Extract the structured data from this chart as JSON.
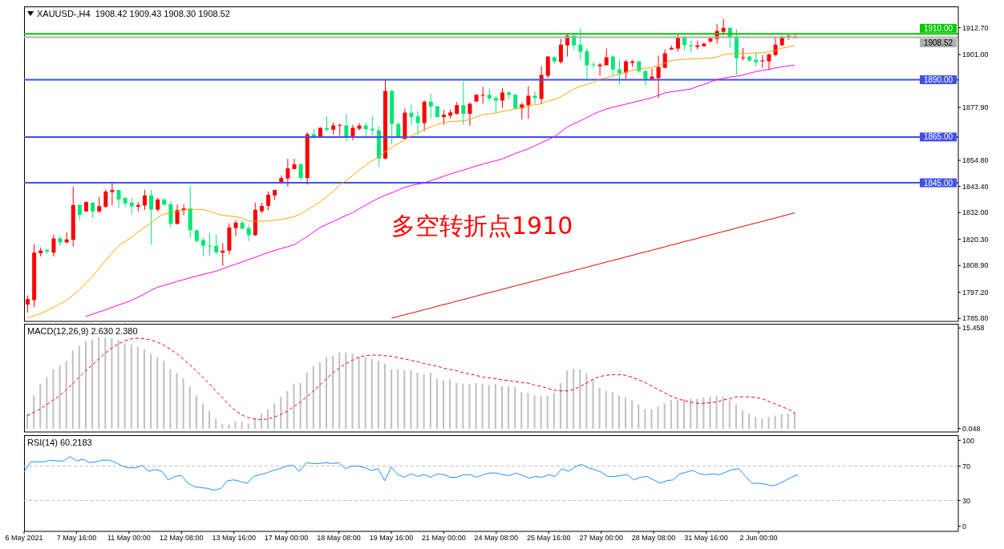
{
  "chart_data": [
    {
      "type": "candlestick",
      "title": "XAUUSD-,H4  1908.42 1909.43 1908.30 1908.52",
      "tick_labels": "y",
      "categories": [
        null,
        null,
        null,
        null,
        null,
        null,
        null,
        null,
        null,
        null,
        null,
        null,
        null,
        null,
        null,
        null,
        null,
        null,
        null,
        null,
        null,
        null,
        null,
        null,
        null,
        null,
        null,
        null,
        null,
        null,
        null,
        null,
        null,
        null,
        null,
        null,
        null,
        null,
        null,
        null,
        null,
        null,
        null,
        null,
        null,
        null,
        null,
        null,
        null,
        null,
        null,
        null,
        null,
        null,
        null,
        null,
        null,
        null,
        null,
        null,
        null,
        null,
        null,
        null,
        null,
        null,
        null,
        null,
        null,
        null,
        null,
        null,
        null,
        null,
        null,
        null,
        null,
        null,
        null,
        null,
        null,
        null,
        null,
        null,
        null,
        null,
        null,
        null,
        null,
        null,
        null,
        null,
        null,
        null,
        null,
        null,
        null,
        null,
        null,
        null,
        null,
        null,
        null,
        null,
        null,
        null,
        null,
        null,
        null,
        null,
        null,
        null,
        null,
        null,
        null,
        null,
        null,
        null,
        null
      ],
      "ohlc": [
        [
          1791.9,
          1795.9,
          1788.4,
          1794.2
        ],
        [
          1793.8,
          1818.2,
          1790.7,
          1814.5
        ],
        [
          1814.3,
          1816.8,
          1812.8,
          1815.4
        ],
        [
          1815.7,
          1816.2,
          1813.9,
          1815.0
        ],
        [
          1814.5,
          1822.4,
          1812.8,
          1820.7
        ],
        [
          1820.7,
          1821.8,
          1817.4,
          1819.0
        ],
        [
          1819.0,
          1823.4,
          1818.6,
          1820.3
        ],
        [
          1820.1,
          1843.3,
          1817.2,
          1835.3
        ],
        [
          1835.3,
          1835.6,
          1828.7,
          1831.0
        ],
        [
          1832.5,
          1837.0,
          1832.3,
          1836.6
        ],
        [
          1836.3,
          1836.6,
          1829.8,
          1832.5
        ],
        [
          1832.5,
          1838.9,
          1831.9,
          1834.8
        ],
        [
          1834.5,
          1842.0,
          1834.0,
          1841.2
        ],
        [
          1841.0,
          1845.2,
          1835.2,
          1841.9
        ],
        [
          1841.9,
          1841.9,
          1834.0,
          1837.7
        ],
        [
          1838.4,
          1838.9,
          1834.5,
          1836.0
        ],
        [
          1836.3,
          1838.4,
          1831.2,
          1834.7
        ],
        [
          1834.6,
          1836.6,
          1832.5,
          1835.3
        ],
        [
          1835.1,
          1841.9,
          1833.1,
          1839.5
        ],
        [
          1839.5,
          1841.9,
          1818.0,
          1833.3
        ],
        [
          1833.3,
          1838.4,
          1832.5,
          1837.7
        ],
        [
          1837.7,
          1838.4,
          1835.1,
          1835.4
        ],
        [
          1835.6,
          1837.0,
          1825.9,
          1827.1
        ],
        [
          1827.1,
          1835.6,
          1826.7,
          1833.1
        ],
        [
          1833.1,
          1835.6,
          1830.8,
          1833.8
        ],
        [
          1833.8,
          1843.5,
          1820.9,
          1824.3
        ],
        [
          1824.3,
          1824.5,
          1818.9,
          1819.6
        ],
        [
          1820.0,
          1821.0,
          1813.0,
          1817.5
        ],
        [
          1817.5,
          1823.1,
          1813.0,
          1817.2
        ],
        [
          1817.5,
          1822.4,
          1813.8,
          1814.7
        ],
        [
          1814.5,
          1818.7,
          1808.9,
          1815.4
        ],
        [
          1815.4,
          1827.3,
          1813.7,
          1825.5
        ],
        [
          1825.2,
          1828.7,
          1821.7,
          1827.6
        ],
        [
          1827.6,
          1828.7,
          1824.7,
          1825.0
        ],
        [
          1825.2,
          1826.6,
          1819.6,
          1822.1
        ],
        [
          1822.1,
          1836.3,
          1821.8,
          1833.2
        ],
        [
          1832.6,
          1836.3,
          1831.6,
          1834.9
        ],
        [
          1834.9,
          1841.2,
          1833.0,
          1839.8
        ],
        [
          1839.5,
          1841.9,
          1837.5,
          1841.9
        ],
        [
          1845.4,
          1848.2,
          1844.6,
          1847.1
        ],
        [
          1846.9,
          1855.5,
          1843.3,
          1851.3
        ],
        [
          1851.0,
          1855.5,
          1851.0,
          1853.1
        ],
        [
          1853.1,
          1853.8,
          1846.1,
          1847.1
        ],
        [
          1847.1,
          1867.1,
          1844.2,
          1866.2
        ],
        [
          1866.2,
          1868.5,
          1864.4,
          1864.7
        ],
        [
          1865.0,
          1869.2,
          1864.7,
          1869.0
        ],
        [
          1868.9,
          1874.0,
          1867.2,
          1868.2
        ],
        [
          1868.2,
          1871.4,
          1866.1,
          1870.0
        ],
        [
          1870.0,
          1870.7,
          1865.6,
          1870.3
        ],
        [
          1870.0,
          1874.9,
          1863.1,
          1864.7
        ],
        [
          1865.4,
          1870.3,
          1863.6,
          1869.0
        ],
        [
          1868.6,
          1871.1,
          1867.9,
          1870.0
        ],
        [
          1870.0,
          1871.4,
          1864.4,
          1868.4
        ],
        [
          1868.6,
          1874.0,
          1865.6,
          1867.9
        ],
        [
          1867.9,
          1869.7,
          1852.1,
          1855.6
        ],
        [
          1855.6,
          1889.8,
          1855.2,
          1885.1
        ],
        [
          1885.1,
          1885.5,
          1861.9,
          1870.7
        ],
        [
          1870.7,
          1871.4,
          1864.7,
          1865.1
        ],
        [
          1864.1,
          1877.5,
          1863.8,
          1875.6
        ],
        [
          1875.6,
          1879.1,
          1870.3,
          1873.7
        ],
        [
          1874.0,
          1876.3,
          1865.8,
          1871.1
        ],
        [
          1871.1,
          1881.1,
          1867.6,
          1880.4
        ],
        [
          1880.4,
          1883.8,
          1873.0,
          1878.3
        ],
        [
          1878.4,
          1878.4,
          1873.7,
          1873.7
        ],
        [
          1873.7,
          1876.8,
          1870.3,
          1874.7
        ],
        [
          1874.3,
          1877.1,
          1872.9,
          1875.7
        ],
        [
          1875.1,
          1880.2,
          1874.8,
          1878.9
        ],
        [
          1878.9,
          1889.3,
          1870.3,
          1875.1
        ],
        [
          1875.1,
          1880.2,
          1869.9,
          1879.5
        ],
        [
          1880.5,
          1883.7,
          1880.2,
          1883.4
        ],
        [
          1883.1,
          1886.9,
          1879.5,
          1883.4
        ],
        [
          1883.4,
          1886.2,
          1880.6,
          1881.8
        ],
        [
          1882.0,
          1883.0,
          1875.5,
          1880.9
        ],
        [
          1880.9,
          1886.2,
          1877.6,
          1884.4
        ],
        [
          1884.4,
          1884.8,
          1881.6,
          1883.4
        ],
        [
          1883.4,
          1883.7,
          1877.1,
          1877.5
        ],
        [
          1877.5,
          1879.9,
          1872.7,
          1879.2
        ],
        [
          1878.9,
          1887.2,
          1873.0,
          1883.0
        ],
        [
          1883.0,
          1884.8,
          1879.5,
          1882.0
        ],
        [
          1881.6,
          1895.9,
          1879.5,
          1892.1
        ],
        [
          1891.7,
          1900.3,
          1890.7,
          1900.1
        ],
        [
          1899.8,
          1900.1,
          1897.0,
          1898.0
        ],
        [
          1897.7,
          1907.8,
          1897.0,
          1905.3
        ],
        [
          1905.0,
          1909.9,
          1900.1,
          1909.2
        ],
        [
          1909.2,
          1909.9,
          1903.2,
          1905.0
        ],
        [
          1905.3,
          1912.6,
          1898.7,
          1902.2
        ],
        [
          1902.5,
          1903.9,
          1890.3,
          1896.3
        ],
        [
          1896.6,
          1897.7,
          1894.9,
          1896.3
        ],
        [
          1895.9,
          1897.3,
          1891.7,
          1896.6
        ],
        [
          1896.3,
          1903.6,
          1896.3,
          1899.8
        ],
        [
          1900.1,
          1900.5,
          1891.7,
          1894.5
        ],
        [
          1894.5,
          1898.7,
          1887.9,
          1892.8
        ],
        [
          1893.1,
          1898.7,
          1890.3,
          1898.0
        ],
        [
          1897.3,
          1898.7,
          1895.6,
          1898.0
        ],
        [
          1898.0,
          1898.2,
          1893.1,
          1893.8
        ],
        [
          1893.8,
          1894.2,
          1887.6,
          1890.3
        ],
        [
          1890.3,
          1894.9,
          1890.2,
          1891.4
        ],
        [
          1890.7,
          1900.5,
          1882.0,
          1895.6
        ],
        [
          1895.2,
          1903.2,
          1895.1,
          1901.5
        ],
        [
          1903.2,
          1905.0,
          1902.9,
          1903.9
        ],
        [
          1903.6,
          1909.9,
          1902.2,
          1908.5
        ],
        [
          1908.5,
          1908.6,
          1902.9,
          1905.0
        ],
        [
          1905.0,
          1907.1,
          1901.8,
          1904.6
        ],
        [
          1904.3,
          1907.1,
          1903.2,
          1905.0
        ],
        [
          1904.6,
          1906.4,
          1904.6,
          1905.7
        ],
        [
          1906.7,
          1908.5,
          1906.0,
          1908.1
        ],
        [
          1907.8,
          1914.4,
          1905.7,
          1911.3
        ],
        [
          1910.9,
          1916.5,
          1909.5,
          1912.6
        ],
        [
          1912.6,
          1913.0,
          1903.9,
          1908.5
        ],
        [
          1908.8,
          1912.0,
          1892.1,
          1899.4
        ],
        [
          1899.4,
          1903.9,
          1898.4,
          1899.8
        ],
        [
          1900.1,
          1900.5,
          1898.0,
          1898.4
        ],
        [
          1898.7,
          1902.2,
          1895.9,
          1897.7
        ],
        [
          1898.0,
          1900.8,
          1895.2,
          1898.4
        ],
        [
          1898.0,
          1901.5,
          1894.2,
          1901.1
        ],
        [
          1900.8,
          1908.8,
          1900.1,
          1905.3
        ],
        [
          1905.0,
          1909.2,
          1905.0,
          1908.8
        ],
        [
          1908.8,
          1909.3,
          1907.4,
          1909.2
        ],
        [
          1908.42,
          1909.43,
          1908.3,
          1908.52
        ]
      ],
      "colors": [
        "#ff0000",
        "#ff0000",
        "#ff0000",
        "#00e676",
        "#ff0000",
        "#00e676",
        "#ff0000",
        "#ff0000",
        "#00e676",
        "#ff0000",
        "#00e676",
        "#ff0000",
        "#ff0000",
        "#ff0000",
        "#00e676",
        "#00e676",
        "#00e676",
        "#ff0000",
        "#ff0000",
        "#00e676",
        "#ff0000",
        "#00e676",
        "#00e676",
        "#ff0000",
        "#ff0000",
        "#00e676",
        "#00e676",
        "#00e676",
        "#00e676",
        "#00e676",
        "#ff0000",
        "#ff0000",
        "#ff0000",
        "#00e676",
        "#00e676",
        "#ff0000",
        "#ff0000",
        "#ff0000",
        "#ff0000",
        "#ff0000",
        "#ff0000",
        "#ff0000",
        "#00e676",
        "#ff0000",
        "#00e676",
        "#ff0000",
        "#00e676",
        "#ff0000",
        "#ff0000",
        "#00e676",
        "#ff0000",
        "#ff0000",
        "#00e676",
        "#00e676",
        "#00e676",
        "#ff0000",
        "#00e676",
        "#00e676",
        "#ff0000",
        "#00e676",
        "#00e676",
        "#ff0000",
        "#00e676",
        "#00e676",
        "#ff0000",
        "#ff0000",
        "#ff0000",
        "#00e676",
        "#ff0000",
        "#ff0000",
        "#ff0000",
        "#00e676",
        "#00e676",
        "#ff0000",
        "#00e676",
        "#00e676",
        "#ff0000",
        "#ff0000",
        "#00e676",
        "#ff0000",
        "#ff0000",
        "#00e676",
        "#ff0000",
        "#ff0000",
        "#00e676",
        "#00e676",
        "#00e676",
        "#00e676",
        "#ff0000",
        "#ff0000",
        "#00e676",
        "#00e676",
        "#ff0000",
        "#ff0000",
        "#00e676",
        "#00e676",
        "#ff0000",
        "#ff0000",
        "#ff0000",
        "#ff0000",
        "#ff0000",
        "#00e676",
        "#00e676",
        "#ff0000",
        "#ff0000",
        "#ff0000",
        "#ff0000",
        "#ff0000",
        "#00e676",
        "#00e676",
        "#ff0000",
        "#00e676",
        "#00e676",
        "#ff0000",
        "#ff0000",
        "#ff0000",
        "#ff0000",
        "#ff0000",
        "#ff0000"
      ],
      "series": [
        {
          "type": "line",
          "color": "#ffa500",
          "values": [
            1786.1,
            1786.9,
            1787.8,
            1789.2,
            1790.7,
            1792.1,
            1793.6,
            1795.9,
            1798.3,
            1801.2,
            1804.1,
            1807.5,
            1811.0,
            1814.3,
            1817.4,
            1819.4,
            1821.1,
            1823.5,
            1825.5,
            1827.3,
            1829.8,
            1831.3,
            1831.9,
            1832.5,
            1833.1,
            1833.4,
            1833.4,
            1833.4,
            1832.5,
            1831.6,
            1830.8,
            1830.5,
            1830.2,
            1829.6,
            1828.4,
            1828.2,
            1828.2,
            1828.4,
            1828.7,
            1829.0,
            1829.6,
            1830.2,
            1831.3,
            1833.1,
            1834.8,
            1836.6,
            1838.9,
            1841.2,
            1844.1,
            1845.9,
            1848.2,
            1850.5,
            1852.6,
            1854.6,
            1856.1,
            1858.6,
            1860.4,
            1862.1,
            1863.9,
            1865.4,
            1866.8,
            1868.2,
            1869.3,
            1870.5,
            1871.2,
            1871.7,
            1871.9,
            1872.0,
            1872.6,
            1873.7,
            1874.7,
            1875.1,
            1875.5,
            1876.1,
            1876.6,
            1877.2,
            1877.8,
            1878.4,
            1879.0,
            1879.5,
            1880.7,
            1881.3,
            1882.5,
            1884.2,
            1885.9,
            1887.1,
            1887.9,
            1888.8,
            1890.3,
            1890.8,
            1891.6,
            1892.3,
            1893.3,
            1894.1,
            1894.6,
            1895.0,
            1895.3,
            1896.4,
            1897.2,
            1898.4,
            1898.7,
            1898.9,
            1899.1,
            1899.2,
            1899.3,
            1899.4,
            1899.9,
            1900.8,
            1901.3,
            1901.4,
            1901.5,
            1901.6,
            1901.7,
            1901.8,
            1902.2,
            1902.8,
            1903.7,
            1904.3,
            1905.0
          ]
        },
        {
          "type": "line",
          "color": "#ff00ff",
          "values": [
            null,
            null,
            null,
            null,
            null,
            null,
            null,
            null,
            null,
            1786.6,
            1787.6,
            1788.6,
            1789.5,
            1790.6,
            1791.6,
            1792.6,
            1793.6,
            1795.0,
            1796.5,
            1798.0,
            1799.4,
            1800.2,
            1801.0,
            1801.9,
            1802.7,
            1803.5,
            1804.3,
            1805.0,
            1805.7,
            1806.4,
            1807.4,
            1808.5,
            1809.4,
            1810.4,
            1811.5,
            1812.4,
            1813.5,
            1814.5,
            1815.4,
            1816.3,
            1817.1,
            1817.9,
            1819.7,
            1821.5,
            1823.5,
            1825.5,
            1826.8,
            1828.1,
            1829.4,
            1830.7,
            1831.9,
            1833.6,
            1835.2,
            1836.8,
            1838.3,
            1839.5,
            1840.6,
            1841.8,
            1843.0,
            1843.8,
            1844.4,
            1844.9,
            1845.9,
            1846.8,
            1847.8,
            1848.8,
            1849.7,
            1850.5,
            1851.4,
            1852.3,
            1853.1,
            1853.9,
            1854.6,
            1855.4,
            1856.6,
            1857.7,
            1858.8,
            1859.8,
            1861.1,
            1862.4,
            1863.8,
            1865.0,
            1867.1,
            1869.3,
            1870.7,
            1872.0,
            1873.4,
            1874.9,
            1876.1,
            1877.2,
            1877.9,
            1878.6,
            1879.3,
            1880.0,
            1880.7,
            1881.4,
            1882.1,
            1883.1,
            1884.2,
            1884.7,
            1885.1,
            1885.5,
            1885.9,
            1887.0,
            1887.9,
            1889.0,
            1890.0,
            1890.6,
            1891.2,
            1891.5,
            1892.0,
            1892.8,
            1893.5,
            1894.1,
            1894.5,
            1895.1,
            1895.6,
            1896.0,
            1896.4
          ]
        },
        {
          "type": "line",
          "color": "#e00000",
          "values": [
            null,
            null,
            null,
            null,
            null,
            null,
            null,
            null,
            null,
            null,
            null,
            null,
            null,
            null,
            null,
            null,
            null,
            null,
            null,
            null,
            null,
            null,
            null,
            null,
            null,
            null,
            null,
            null,
            null,
            null,
            null,
            null,
            null,
            null,
            null,
            null,
            null,
            null,
            null,
            null,
            null,
            null,
            null,
            null,
            null,
            null,
            null,
            null,
            null,
            null,
            null,
            null,
            null,
            null,
            null,
            null,
            1785.9,
            1786.6,
            1787.4,
            1788.1,
            1788.8,
            1789.6,
            1790.3,
            1791.1,
            1791.8,
            1792.5,
            1793.3,
            1794.0,
            1794.8,
            1795.5,
            1796.3,
            1797.0,
            1797.7,
            1798.5,
            1799.2,
            1800.0,
            1800.7,
            1801.4,
            1802.2,
            1802.9,
            1803.7,
            1804.4,
            1805.2,
            1805.9,
            1806.6,
            1807.4,
            1808.1,
            1808.9,
            1809.6,
            1810.4,
            1811.1,
            1811.8,
            1812.6,
            1813.3,
            1814.1,
            1814.8,
            1815.5,
            1816.3,
            1817.0,
            1817.8,
            1818.5,
            1819.3,
            1820.0,
            1820.7,
            1821.5,
            1822.2,
            1823.0,
            1823.7,
            1824.4,
            1825.2,
            1825.9,
            1826.7,
            1827.4,
            1828.1,
            1828.9,
            1829.6,
            1830.4,
            1831.1,
            1831.9
          ]
        }
      ],
      "ylim": [
        1784.5,
        1922
      ],
      "yticks": [
        {
          "value": 1912.7,
          "label": "1912.70"
        },
        {
          "value": 1901,
          "label": "1901.00"
        },
        {
          "value": 1877.9,
          "label": "1877.90"
        },
        {
          "value": 1854.8,
          "label": "1854.80"
        },
        {
          "value": 1843.4,
          "label": "1843.40"
        },
        {
          "value": 1832,
          "label": "1832.00"
        },
        {
          "value": 1820.3,
          "label": "1820.30"
        },
        {
          "value": 1808.9,
          "label": "1808.90"
        },
        {
          "value": 1797.2,
          "label": "1797.20"
        },
        {
          "value": 1785.8,
          "label": "1785.80"
        }
      ],
      "ref_lines": [
        {
          "axis": "y",
          "value": 1910,
          "label": "1910.00",
          "color": "#00c800"
        },
        {
          "axis": "y",
          "value": 1908.52,
          "label": "1908.52",
          "color": "#b0b0b0"
        },
        {
          "axis": "y",
          "value": 1890,
          "label": "1890.00",
          "color": "#3f51e6"
        },
        {
          "axis": "y",
          "value": 1865,
          "label": "1865.00",
          "color": "#3f51e6"
        },
        {
          "axis": "y",
          "value": 1845,
          "label": "1845.00",
          "color": "#3f51e6"
        }
      ],
      "annotations": [
        "多空转折点1910"
      ]
    },
    {
      "type": "bar",
      "title": "MACD(12,26,9) 2.630 2.380",
      "tick_labels": "y",
      "categories": [
        null,
        null,
        null,
        null,
        null,
        null,
        null,
        null,
        null,
        null,
        null,
        null,
        null,
        null,
        null,
        null,
        null,
        null,
        null,
        null,
        null,
        null,
        null,
        null,
        null,
        null,
        null,
        null,
        null,
        null,
        null,
        null,
        null,
        null,
        null,
        null,
        null,
        null,
        null,
        null,
        null,
        null,
        null,
        null,
        null,
        null,
        null,
        null,
        null,
        null,
        null,
        null,
        null,
        null,
        null,
        null,
        null,
        null,
        null,
        null,
        null,
        null,
        null,
        null,
        null,
        null,
        null,
        null,
        null,
        null,
        null,
        null,
        null,
        null,
        null,
        null,
        null,
        null,
        null,
        null,
        null,
        null,
        null,
        null,
        null,
        null,
        null,
        null,
        null,
        null,
        null,
        null,
        null,
        null,
        null,
        null,
        null,
        null,
        null,
        null,
        null,
        null,
        null,
        null,
        null,
        null,
        null,
        null,
        null,
        null,
        null,
        null,
        null,
        null,
        null,
        null,
        null,
        null,
        null
      ],
      "series": [
        {
          "type": "bar",
          "color": "#c0c0c0",
          "values": [
            2.3,
            5.1,
            6.9,
            7.9,
            9.1,
            9.8,
            10.4,
            12.0,
            12.7,
            13.4,
            13.7,
            14.0,
            14.0,
            13.9,
            13.6,
            13.1,
            12.9,
            12.6,
            12.2,
            11.5,
            11.0,
            10.4,
            9.1,
            8.6,
            7.7,
            6.5,
            5.1,
            3.9,
            2.7,
            1.5,
            0.7,
            0.7,
            1.1,
            1.1,
            0.8,
            1.6,
            2.3,
            3.0,
            3.9,
            4.9,
            5.8,
            6.9,
            7.0,
            8.6,
            9.6,
            10.2,
            11.0,
            11.2,
            11.7,
            11.7,
            11.5,
            11.0,
            11.0,
            10.7,
            10.4,
            10.0,
            9.1,
            9.1,
            9.0,
            9.0,
            8.6,
            8.4,
            8.6,
            7.7,
            7.4,
            7.6,
            7.0,
            6.9,
            6.9,
            7.0,
            6.9,
            6.7,
            6.9,
            6.5,
            6.5,
            6.4,
            5.6,
            5.5,
            5.1,
            5.0,
            5.1,
            5.5,
            7.0,
            8.9,
            9.2,
            9.1,
            8.5,
            7.6,
            6.3,
            5.8,
            5.6,
            5.1,
            4.8,
            4.4,
            3.7,
            3.0,
            3.0,
            3.4,
            3.9,
            4.4,
            4.4,
            4.6,
            4.6,
            4.6,
            4.8,
            4.9,
            5.1,
            4.9,
            4.4,
            3.7,
            2.9,
            2.3,
            1.8,
            1.6,
            1.8,
            2.0,
            2.2,
            2.3,
            2.63
          ]
        },
        {
          "type": "line",
          "color": "#ff0000",
          "line_style": "dashed",
          "values": [
            2.0,
            2.5,
            3.0,
            3.7,
            4.4,
            5.1,
            6.0,
            6.9,
            7.9,
            8.9,
            9.8,
            10.7,
            11.6,
            12.4,
            13.0,
            13.5,
            13.8,
            13.9,
            13.8,
            13.6,
            13.3,
            12.8,
            12.2,
            11.5,
            10.7,
            9.8,
            8.9,
            7.9,
            6.9,
            5.8,
            4.8,
            3.7,
            2.8,
            2.1,
            1.7,
            1.5,
            1.4,
            1.5,
            1.8,
            2.2,
            2.7,
            3.4,
            4.1,
            4.9,
            5.8,
            6.7,
            7.7,
            8.6,
            9.3,
            10.0,
            10.5,
            11.0,
            11.2,
            11.3,
            11.3,
            11.2,
            11.1,
            10.9,
            10.7,
            10.5,
            10.3,
            10.0,
            9.8,
            9.6,
            9.3,
            9.1,
            8.9,
            8.6,
            8.4,
            8.2,
            7.9,
            7.8,
            7.7,
            7.5,
            7.4,
            7.2,
            7.1,
            7.0,
            6.7,
            6.5,
            6.2,
            5.9,
            5.8,
            5.8,
            6.0,
            6.5,
            7.0,
            7.6,
            8.0,
            8.2,
            8.3,
            8.3,
            8.2,
            7.9,
            7.5,
            7.1,
            6.6,
            6.0,
            5.5,
            5.0,
            4.6,
            4.3,
            4.1,
            3.9,
            3.9,
            4.0,
            4.1,
            4.4,
            4.6,
            4.9,
            4.9,
            4.9,
            4.8,
            4.6,
            4.2,
            3.8,
            3.4,
            3.0,
            2.38
          ]
        }
      ],
      "ylim": [
        -0.5,
        16.1
      ],
      "yticks": [
        15.458,
        0.048
      ]
    },
    {
      "type": "line",
      "title": "RSI(14) 60.2183",
      "categories": [
        "6 May 2021",
        null,
        null,
        null,
        null,
        null,
        null,
        null,
        "7 May 16:00",
        null,
        null,
        null,
        null,
        null,
        null,
        null,
        "11 May 00:00",
        null,
        null,
        null,
        null,
        null,
        null,
        null,
        "12 May 08:00",
        null,
        null,
        null,
        null,
        null,
        null,
        null,
        "13 May 16:00",
        null,
        null,
        null,
        null,
        null,
        null,
        null,
        "17 May 00:00",
        null,
        null,
        null,
        null,
        null,
        null,
        null,
        "18 May 08:00",
        null,
        null,
        null,
        null,
        null,
        null,
        null,
        "19 May 16:00",
        null,
        null,
        null,
        null,
        null,
        null,
        null,
        "21 May 00:00",
        null,
        null,
        null,
        null,
        null,
        null,
        null,
        "24 May 08:00",
        null,
        null,
        null,
        null,
        null,
        null,
        null,
        "25 May 16:00",
        null,
        null,
        null,
        null,
        null,
        null,
        null,
        "27 May 00:00",
        null,
        null,
        null,
        null,
        null,
        null,
        null,
        "28 May 08:00",
        null,
        null,
        null,
        null,
        null,
        null,
        null,
        "31 May 16:00",
        null,
        null,
        null,
        null,
        null,
        null,
        null,
        "2 Jun 00:00",
        null,
        null,
        null,
        null,
        null,
        null
      ],
      "series": [
        {
          "color": "#1e90ff",
          "values": [
            63,
            75,
            75,
            75,
            77,
            76,
            76,
            81,
            76,
            78,
            74,
            75,
            77,
            77,
            74,
            70,
            68,
            68,
            71,
            64,
            66,
            64,
            54,
            58,
            59,
            50,
            46,
            45,
            44,
            42,
            44,
            53,
            54,
            52,
            50,
            58,
            60,
            62,
            65,
            67,
            70,
            71,
            64,
            74,
            73,
            73,
            74,
            73,
            74,
            67,
            70,
            70,
            68,
            65,
            67,
            53,
            69,
            60,
            57,
            61,
            58,
            60,
            57,
            61,
            60,
            57,
            57,
            60,
            60,
            57,
            60,
            62,
            62,
            60,
            59,
            62,
            59,
            56,
            58,
            57,
            60,
            58,
            67,
            64,
            69,
            72,
            68,
            66,
            63,
            58,
            58,
            59,
            60,
            54,
            57,
            58,
            54,
            50,
            53,
            54,
            61,
            63,
            65,
            61,
            60,
            61,
            60,
            63,
            66,
            67,
            58,
            50,
            50,
            49,
            47,
            49,
            53,
            57,
            60.2183
          ]
        }
      ],
      "ylim": [
        -6,
        106
      ],
      "yticks": [
        100,
        70,
        30,
        0
      ],
      "ref_lines": [
        {
          "axis": "y",
          "value": 70,
          "color": "#c0c0c0",
          "line_style": "dashed"
        },
        {
          "axis": "y",
          "value": 30,
          "color": "#c0c0c0",
          "line_style": "dashed"
        }
      ]
    }
  ]
}
